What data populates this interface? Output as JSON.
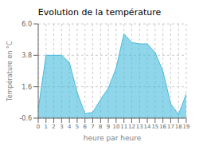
{
  "chart_data": {
    "type": "area",
    "title": "Evolution de la température",
    "xlabel": "heure par heure",
    "ylabel": "Température en °C",
    "x": [
      0,
      1,
      2,
      3,
      4,
      5,
      6,
      7,
      8,
      9,
      10,
      11,
      12,
      13,
      14,
      15,
      16,
      17,
      18,
      19
    ],
    "values": [
      0.0,
      3.8,
      3.8,
      3.8,
      3.3,
      1.2,
      -0.3,
      -0.2,
      0.7,
      1.5,
      2.9,
      5.3,
      4.7,
      4.6,
      4.6,
      4.0,
      2.7,
      0.4,
      -0.35,
      1.1
    ],
    "color": "#44bbdd",
    "xlim": [
      0,
      19
    ],
    "xticks": [
      0,
      1,
      2,
      3,
      4,
      5,
      6,
      7,
      8,
      9,
      10,
      11,
      12,
      13,
      14,
      15,
      16,
      17,
      18,
      19
    ],
    "ylim": [
      -0.6,
      6.0
    ],
    "yticks": [
      -0.6,
      1.6,
      3.8,
      {
        "value": 6.0,
        "label": "6.0"
      }
    ],
    "grid": true
  }
}
